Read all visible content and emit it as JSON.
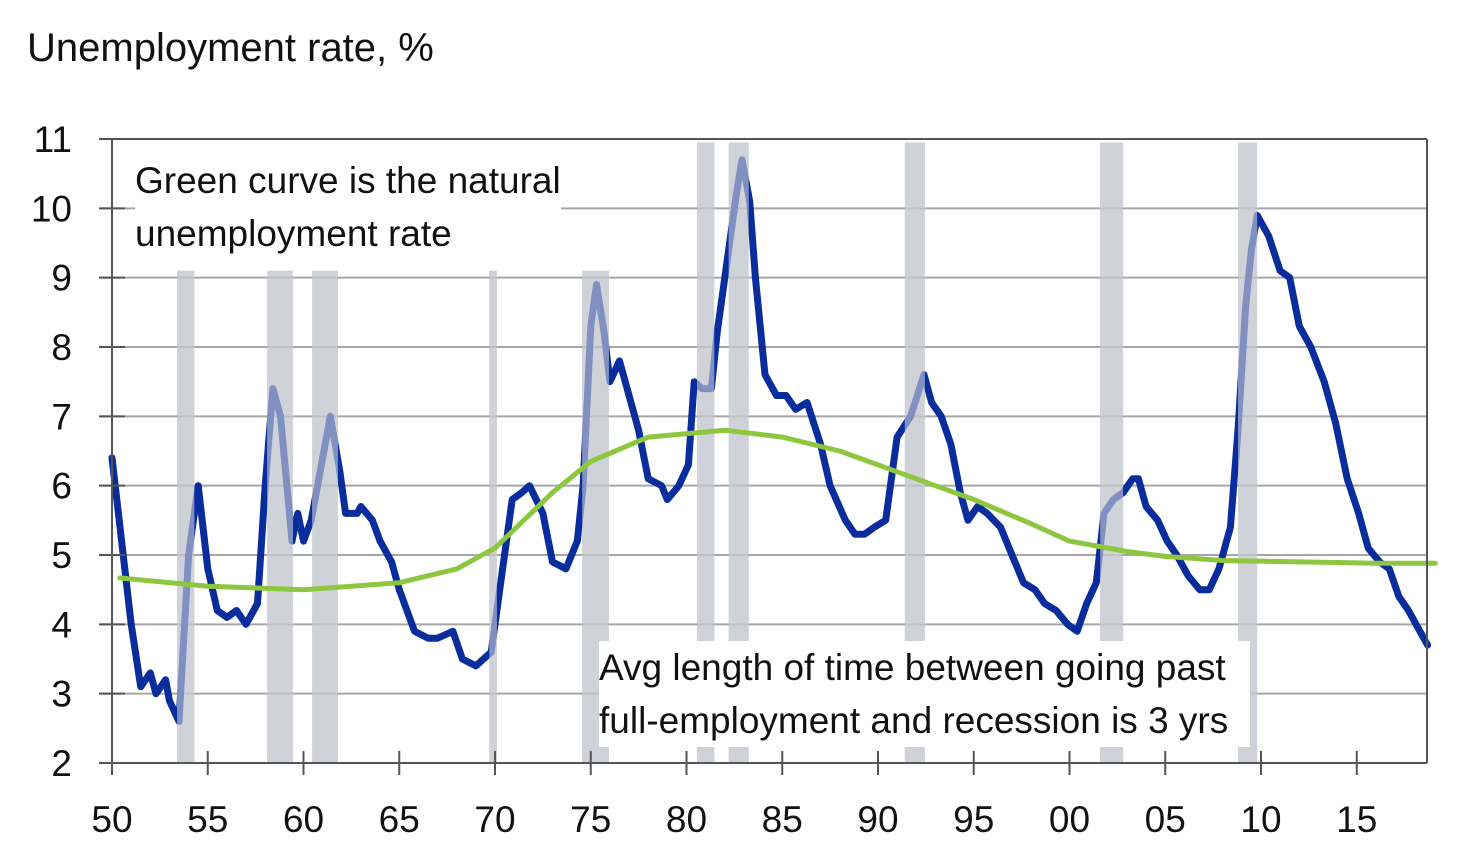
{
  "chart_data": {
    "type": "line",
    "title": "Unemployment rate, %",
    "xlabel": "",
    "ylabel": "",
    "xlim": [
      1950,
      2018.7
    ],
    "ylim": [
      2,
      11
    ],
    "grid": true,
    "y_ticks": [
      2,
      3,
      4,
      5,
      6,
      7,
      8,
      9,
      10,
      11
    ],
    "x_ticks": [
      {
        "year": 1950,
        "label": "50"
      },
      {
        "year": 1955,
        "label": "55"
      },
      {
        "year": 1960,
        "label": "60"
      },
      {
        "year": 1965,
        "label": "65"
      },
      {
        "year": 1970,
        "label": "70"
      },
      {
        "year": 1975,
        "label": "75"
      },
      {
        "year": 1980,
        "label": "80"
      },
      {
        "year": 1985,
        "label": "85"
      },
      {
        "year": 1990,
        "label": "90"
      },
      {
        "year": 1995,
        "label": "95"
      },
      {
        "year": 2000,
        "label": "00"
      },
      {
        "year": 2005,
        "label": "05"
      },
      {
        "year": 2010,
        "label": "10"
      },
      {
        "year": 2015,
        "label": "15"
      }
    ],
    "annotations": [
      {
        "id": "natural-rate-note",
        "lines": [
          "Green curve is the natural",
          "unemployment rate"
        ]
      },
      {
        "id": "avg-length-note",
        "lines": [
          "Avg length of time between going past",
          "full-employment and recession is 3 yrs"
        ]
      }
    ],
    "recessions": [
      {
        "start": 1953.4,
        "end": 1954.3,
        "top": 9.1
      },
      {
        "start": 1958.1,
        "end": 1959.45,
        "top": 9.1
      },
      {
        "start": 1960.45,
        "end": 1961.8,
        "top": 9.1
      },
      {
        "start": 1969.7,
        "end": 1970.1,
        "top": 9.1
      },
      {
        "start": 1974.55,
        "end": 1975.95,
        "top": 9.1
      },
      {
        "start": 1980.55,
        "end": 1981.45,
        "top": 10.95
      },
      {
        "start": 1982.2,
        "end": 1983.25,
        "top": 10.95
      },
      {
        "start": 1991.4,
        "end": 1992.45,
        "top": 10.95
      },
      {
        "start": 2001.6,
        "end": 2002.8,
        "top": 10.95
      },
      {
        "start": 2008.8,
        "end": 2009.8,
        "top": 10.95
      }
    ],
    "series": [
      {
        "name": "Unemployment rate",
        "color": "#0a2d9e",
        "x": [
          1950.0,
          1950.5,
          1951.0,
          1951.5,
          1952.0,
          1952.3,
          1952.8,
          1953.0,
          1953.5,
          1954.0,
          1954.5,
          1955.0,
          1955.5,
          1956.0,
          1956.5,
          1957.0,
          1957.6,
          1958.0,
          1958.4,
          1958.8,
          1959.4,
          1959.7,
          1960.0,
          1960.4,
          1961.2,
          1961.4,
          1961.9,
          1962.2,
          1962.8,
          1963.0,
          1963.6,
          1964.0,
          1964.6,
          1965.0,
          1965.8,
          1966.5,
          1967.0,
          1967.8,
          1968.3,
          1969.0,
          1969.8,
          1970.3,
          1970.9,
          1971.4,
          1971.8,
          1972.5,
          1973.0,
          1973.7,
          1974.3,
          1974.6,
          1975.0,
          1975.3,
          1975.7,
          1976.0,
          1976.5,
          1977.5,
          1978.0,
          1978.7,
          1979.0,
          1979.6,
          1980.1,
          1980.4,
          1980.8,
          1981.3,
          1981.6,
          1982.0,
          1982.6,
          1982.9,
          1983.3,
          1983.6,
          1984.1,
          1984.7,
          1985.2,
          1985.7,
          1986.3,
          1987.0,
          1987.5,
          1988.3,
          1988.8,
          1989.3,
          1989.8,
          1990.4,
          1991.0,
          1991.7,
          1992.4,
          1992.8,
          1993.3,
          1993.8,
          1994.3,
          1994.7,
          1995.2,
          1995.7,
          1996.4,
          1997.0,
          1997.6,
          1998.2,
          1998.7,
          1999.3,
          1999.9,
          2000.4,
          2000.9,
          2001.4,
          2001.8,
          2002.3,
          2002.8,
          2003.3,
          2003.6,
          2004.0,
          2004.6,
          2005.1,
          2005.6,
          2006.2,
          2006.8,
          2007.3,
          2007.8,
          2008.4,
          2008.8,
          2009.2,
          2009.5,
          2009.8,
          2010.4,
          2011.0,
          2011.5,
          2012.0,
          2012.6,
          2013.3,
          2013.9,
          2014.5,
          2015.1,
          2015.6,
          2016.2,
          2016.7,
          2017.2,
          2017.7,
          2018.3,
          2018.7
        ],
        "values": [
          6.4,
          5.2,
          4.0,
          3.1,
          3.3,
          3.0,
          3.2,
          2.9,
          2.6,
          5.0,
          6.0,
          4.8,
          4.2,
          4.1,
          4.2,
          4.0,
          4.3,
          6.0,
          7.4,
          7.0,
          5.2,
          5.6,
          5.2,
          5.5,
          6.7,
          7.0,
          6.2,
          5.6,
          5.6,
          5.7,
          5.5,
          5.2,
          4.9,
          4.5,
          3.9,
          3.8,
          3.8,
          3.9,
          3.5,
          3.4,
          3.6,
          4.6,
          5.8,
          5.9,
          6.0,
          5.6,
          4.9,
          4.8,
          5.2,
          6.0,
          8.3,
          8.9,
          8.2,
          7.5,
          7.8,
          6.8,
          6.1,
          6.0,
          5.8,
          6.0,
          6.3,
          7.5,
          7.4,
          7.4,
          8.2,
          9.0,
          10.2,
          10.7,
          10.1,
          9.0,
          7.6,
          7.3,
          7.3,
          7.1,
          7.2,
          6.6,
          6.0,
          5.5,
          5.3,
          5.3,
          5.4,
          5.5,
          6.7,
          7.0,
          7.6,
          7.2,
          7.0,
          6.6,
          5.9,
          5.5,
          5.7,
          5.6,
          5.4,
          5.0,
          4.6,
          4.5,
          4.3,
          4.2,
          4.0,
          3.9,
          4.3,
          4.6,
          5.6,
          5.8,
          5.9,
          6.1,
          6.1,
          5.7,
          5.5,
          5.2,
          5.0,
          4.7,
          4.5,
          4.5,
          4.8,
          5.4,
          6.8,
          8.6,
          9.4,
          9.9,
          9.6,
          9.1,
          9.0,
          8.3,
          8.0,
          7.5,
          6.9,
          6.1,
          5.6,
          5.1,
          4.9,
          4.8,
          4.4,
          4.2,
          3.9,
          3.7
        ]
      },
      {
        "name": "Natural unemployment rate",
        "color": "#8dc63f",
        "x": [
          1950.4,
          1955,
          1960,
          1965,
          1968,
          1970,
          1973,
          1975,
          1978,
          1982,
          1985,
          1988,
          1990,
          1993,
          1995,
          1998,
          2000,
          2003,
          2005,
          2008,
          2012,
          2016,
          2019.1
        ],
        "values": [
          4.67,
          4.55,
          4.5,
          4.6,
          4.8,
          5.1,
          5.9,
          6.35,
          6.7,
          6.8,
          6.7,
          6.5,
          6.3,
          6.0,
          5.8,
          5.45,
          5.2,
          5.05,
          4.98,
          4.92,
          4.9,
          4.88,
          4.88
        ]
      }
    ],
    "colors": {
      "recession_band": "#cfd3d9",
      "grid": "#a6a6a6",
      "axis": "#555555"
    }
  }
}
